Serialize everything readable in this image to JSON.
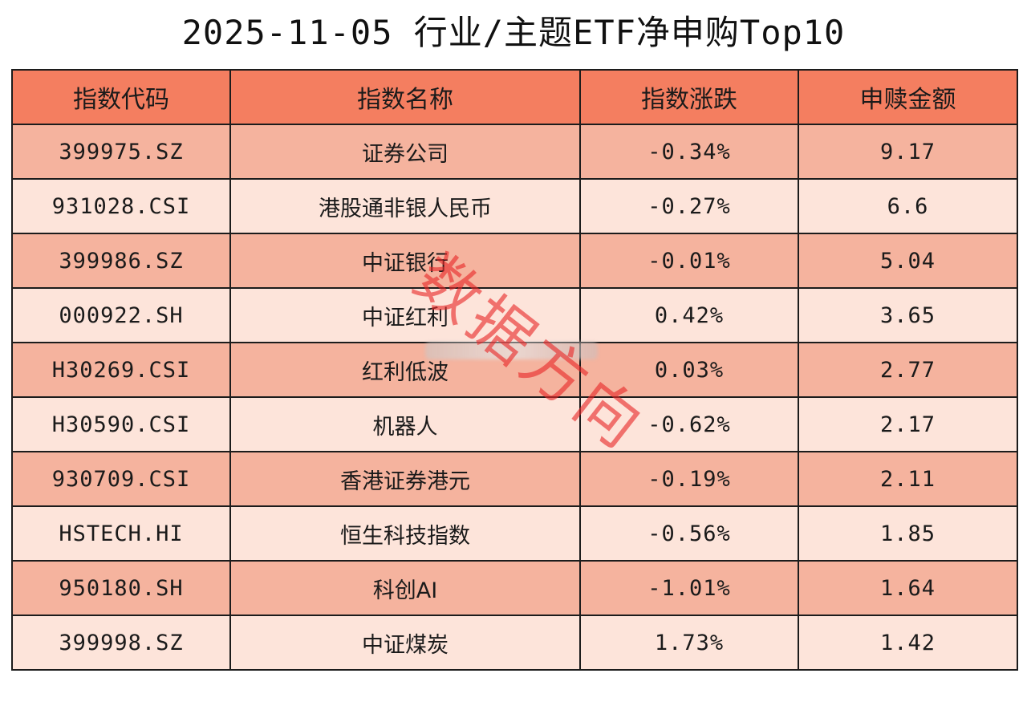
{
  "title": "2025-11-05 行业/主题ETF净申购Top10",
  "colors": {
    "header_bg": "#f47e60",
    "row_dark_bg": "#f5b39e",
    "row_light_bg": "#fde4da",
    "border": "#1c1c1c",
    "watermark": "#e82828"
  },
  "table": {
    "headers": [
      "指数代码",
      "指数名称",
      "指数涨跌",
      "申赎金额"
    ],
    "rows": [
      [
        "399975.SZ",
        "证券公司",
        "-0.34%",
        "9.17"
      ],
      [
        "931028.CSI",
        "港股通非银人民币",
        "-0.27%",
        "6.6"
      ],
      [
        "399986.SZ",
        "中证银行",
        "-0.01%",
        "5.04"
      ],
      [
        "000922.SH",
        "中证红利",
        "0.42%",
        "3.65"
      ],
      [
        "H30269.CSI",
        "红利低波",
        "0.03%",
        "2.77"
      ],
      [
        "H30590.CSI",
        "机器人",
        "-0.62%",
        "2.17"
      ],
      [
        "930709.CSI",
        "香港证券港元",
        "-0.19%",
        "2.11"
      ],
      [
        "HSTECH.HI",
        "恒生科技指数",
        "-0.56%",
        "1.85"
      ],
      [
        "950180.SH",
        "科创AI",
        "-1.01%",
        "1.64"
      ],
      [
        "399998.SZ",
        "中证煤炭",
        "1.73%",
        "1.42"
      ]
    ]
  },
  "watermark": "数据方向"
}
